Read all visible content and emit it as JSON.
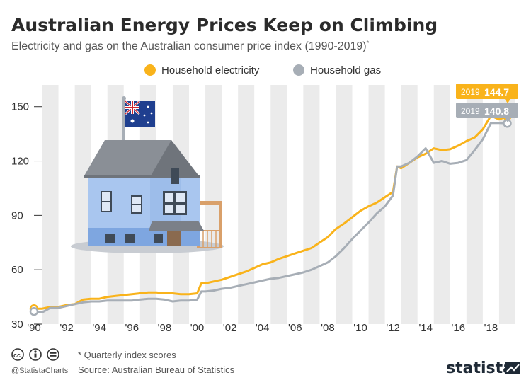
{
  "title": "Australian Energy Prices Keep on Climbing",
  "subtitle": "Electricity and gas on the Australian consumer price index (1990-2019)",
  "subtitle_mark": "*",
  "legend": [
    {
      "label": "Household electricity",
      "color": "#f9b31b"
    },
    {
      "label": "Household gas",
      "color": "#a7aeb6"
    }
  ],
  "callouts": {
    "electricity": {
      "year": "2019",
      "value": "144.7"
    },
    "gas": {
      "year": "2019",
      "value": "140.8"
    }
  },
  "footnote": "* Quarterly index scores",
  "source": "Source: Australian Bureau of Statistics",
  "handle": "@StatistaCharts",
  "brand": "statista",
  "illustration": {
    "subject": "house with Australian flag",
    "icon": "house-icon"
  },
  "chart_data": {
    "type": "line",
    "title": "Australian Energy Prices Keep on Climbing",
    "subtitle": "Electricity and gas on the Australian consumer price index (1990-2019)",
    "xlabel": "",
    "ylabel": "",
    "x_tick_labels": [
      "'90",
      "'92",
      "'94",
      "'96",
      "'98",
      "'00",
      "'02",
      "'04",
      "'06",
      "'08",
      "'10",
      "'12",
      "'14",
      "'16",
      "'18"
    ],
    "y_ticks": [
      30,
      60,
      90,
      120,
      150
    ],
    "ylim": [
      30,
      162
    ],
    "xlim": [
      1990,
      2019.5
    ],
    "grid": "alternating vertical bands",
    "legend_position": "top",
    "series": [
      {
        "name": "Household electricity",
        "color": "#f9b31b",
        "points": [
          [
            1990.0,
            38.5
          ],
          [
            1990.5,
            38.5
          ],
          [
            1991.0,
            39.5
          ],
          [
            1991.5,
            39.5
          ],
          [
            1992.0,
            40.5
          ],
          [
            1992.5,
            41.0
          ],
          [
            1993.0,
            43.5
          ],
          [
            1993.5,
            44.0
          ],
          [
            1994.0,
            44.0
          ],
          [
            1994.5,
            45.0
          ],
          [
            1995.0,
            45.5
          ],
          [
            1995.5,
            46.0
          ],
          [
            1996.0,
            46.5
          ],
          [
            1996.5,
            47.0
          ],
          [
            1997.0,
            47.5
          ],
          [
            1997.5,
            47.5
          ],
          [
            1998.0,
            47.0
          ],
          [
            1998.5,
            47.0
          ],
          [
            1999.0,
            46.5
          ],
          [
            1999.5,
            46.5
          ],
          [
            2000.0,
            47.0
          ],
          [
            2000.25,
            52.5
          ],
          [
            2000.5,
            52.5
          ],
          [
            2001.0,
            53.5
          ],
          [
            2001.5,
            54.5
          ],
          [
            2002.0,
            56.0
          ],
          [
            2002.5,
            57.5
          ],
          [
            2003.0,
            59.0
          ],
          [
            2003.5,
            61.0
          ],
          [
            2004.0,
            63.0
          ],
          [
            2004.5,
            64.0
          ],
          [
            2005.0,
            66.0
          ],
          [
            2005.5,
            67.5
          ],
          [
            2006.0,
            69.0
          ],
          [
            2006.5,
            70.5
          ],
          [
            2007.0,
            72.0
          ],
          [
            2007.5,
            75.0
          ],
          [
            2008.0,
            78.0
          ],
          [
            2008.5,
            82.5
          ],
          [
            2009.0,
            85.5
          ],
          [
            2009.5,
            89.0
          ],
          [
            2010.0,
            92.5
          ],
          [
            2010.5,
            95.0
          ],
          [
            2011.0,
            97.0
          ],
          [
            2011.5,
            100.0
          ],
          [
            2012.0,
            103.0
          ],
          [
            2012.25,
            117.0
          ],
          [
            2012.5,
            116.0
          ],
          [
            2013.0,
            119.0
          ],
          [
            2013.5,
            122.0
          ],
          [
            2014.0,
            124.0
          ],
          [
            2014.5,
            127.0
          ],
          [
            2015.0,
            126.0
          ],
          [
            2015.5,
            126.5
          ],
          [
            2016.0,
            128.5
          ],
          [
            2016.5,
            131.0
          ],
          [
            2017.0,
            133.0
          ],
          [
            2017.5,
            137.5
          ],
          [
            2018.0,
            145.0
          ],
          [
            2018.5,
            143.0
          ],
          [
            2019.0,
            144.7
          ]
        ]
      },
      {
        "name": "Household gas",
        "color": "#a7aeb6",
        "points": [
          [
            1990.0,
            37.0
          ],
          [
            1990.5,
            36.5
          ],
          [
            1991.0,
            39.0
          ],
          [
            1991.5,
            39.0
          ],
          [
            1992.0,
            40.0
          ],
          [
            1992.5,
            41.0
          ],
          [
            1993.0,
            42.0
          ],
          [
            1993.5,
            42.5
          ],
          [
            1994.0,
            42.5
          ],
          [
            1994.5,
            43.0
          ],
          [
            1995.0,
            43.0
          ],
          [
            1995.5,
            43.0
          ],
          [
            1996.0,
            43.0
          ],
          [
            1996.5,
            43.5
          ],
          [
            1997.0,
            44.0
          ],
          [
            1997.5,
            44.0
          ],
          [
            1998.0,
            43.5
          ],
          [
            1998.5,
            42.5
          ],
          [
            1999.0,
            43.0
          ],
          [
            1999.5,
            43.0
          ],
          [
            2000.0,
            43.5
          ],
          [
            2000.25,
            48.0
          ],
          [
            2000.5,
            48.0
          ],
          [
            2001.0,
            48.5
          ],
          [
            2001.5,
            49.5
          ],
          [
            2002.0,
            50.0
          ],
          [
            2002.5,
            51.0
          ],
          [
            2003.0,
            52.0
          ],
          [
            2003.5,
            53.0
          ],
          [
            2004.0,
            54.0
          ],
          [
            2004.5,
            55.0
          ],
          [
            2005.0,
            55.5
          ],
          [
            2005.5,
            56.5
          ],
          [
            2006.0,
            57.5
          ],
          [
            2006.5,
            58.5
          ],
          [
            2007.0,
            60.0
          ],
          [
            2007.5,
            62.0
          ],
          [
            2008.0,
            64.0
          ],
          [
            2008.5,
            67.5
          ],
          [
            2009.0,
            72.0
          ],
          [
            2009.5,
            77.0
          ],
          [
            2010.0,
            81.5
          ],
          [
            2010.5,
            86.0
          ],
          [
            2011.0,
            91.0
          ],
          [
            2011.5,
            95.0
          ],
          [
            2012.0,
            101.0
          ],
          [
            2012.25,
            117.0
          ],
          [
            2012.5,
            117.0
          ],
          [
            2013.0,
            119.0
          ],
          [
            2013.5,
            122.5
          ],
          [
            2014.0,
            127.0
          ],
          [
            2014.5,
            119.0
          ],
          [
            2015.0,
            120.0
          ],
          [
            2015.5,
            118.5
          ],
          [
            2016.0,
            119.0
          ],
          [
            2016.5,
            120.5
          ],
          [
            2017.0,
            126.0
          ],
          [
            2017.5,
            132.0
          ],
          [
            2018.0,
            141.0
          ],
          [
            2018.5,
            141.0
          ],
          [
            2019.0,
            140.8
          ]
        ]
      }
    ]
  }
}
